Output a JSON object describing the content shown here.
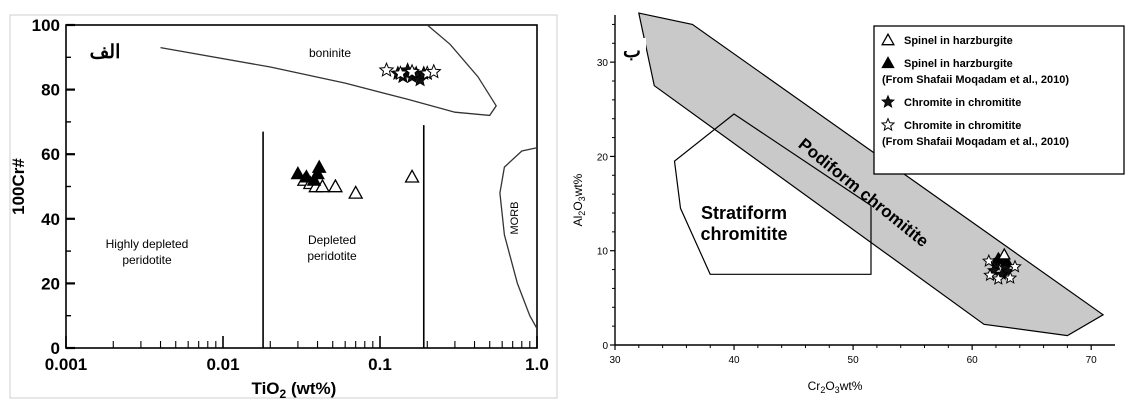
{
  "chart_data": [
    {
      "type": "scatter",
      "panel_label": "الف",
      "xlabel_main": "TiO",
      "xlabel_sub": "2",
      "xlabel_tail": " (wt%)",
      "ylabel": "100Cr#",
      "xscale": "log",
      "xlim": [
        0.001,
        1.0
      ],
      "ylim": [
        0,
        100
      ],
      "xticks": [
        {
          "v": 0.001,
          "label": "0.001"
        },
        {
          "v": 0.01,
          "label": "0.01"
        },
        {
          "v": 0.1,
          "label": "0.1"
        },
        {
          "v": 1.0,
          "label": "1.0"
        }
      ],
      "yticks": [
        {
          "v": 0,
          "label": "0"
        },
        {
          "v": 20,
          "label": "20"
        },
        {
          "v": 40,
          "label": "40"
        },
        {
          "v": 60,
          "label": "60"
        },
        {
          "v": 80,
          "label": "80"
        },
        {
          "v": 100,
          "label": "100"
        }
      ],
      "region_labels": {
        "boninite": "boninite",
        "highly_depleted": [
          "Highly depleted",
          "peridotite"
        ],
        "depleted": [
          "Depleted",
          "peridotite"
        ],
        "morb": "MORB"
      },
      "boundaries": {
        "boninite_curve": [
          [
            0.004,
            93
          ],
          [
            0.02,
            87
          ],
          [
            0.06,
            82
          ],
          [
            0.15,
            77
          ],
          [
            0.3,
            73
          ],
          [
            0.5,
            72
          ],
          [
            0.55,
            75
          ],
          [
            0.42,
            84
          ],
          [
            0.28,
            94
          ],
          [
            0.2,
            100
          ]
        ],
        "vline_low": {
          "x": 0.018,
          "y0": 0,
          "y1": 67
        },
        "vline_high": {
          "x": 0.19,
          "y0": 0,
          "y1": 69
        },
        "morb_curve": [
          [
            1.0,
            62
          ],
          [
            0.8,
            61
          ],
          [
            0.62,
            56
          ],
          [
            0.58,
            48
          ],
          [
            0.62,
            35
          ],
          [
            0.75,
            20
          ],
          [
            0.9,
            10
          ],
          [
            1.0,
            6
          ]
        ]
      },
      "series": [
        {
          "marker": "open-triangle",
          "points": [
            [
              0.033,
              52
            ],
            [
              0.036,
              51
            ],
            [
              0.039,
              50
            ],
            [
              0.043,
              50
            ],
            [
              0.052,
              50
            ],
            [
              0.07,
              48
            ],
            [
              0.16,
              53
            ]
          ]
        },
        {
          "marker": "filled-triangle",
          "points": [
            [
              0.03,
              54
            ],
            [
              0.034,
              53
            ],
            [
              0.04,
              54
            ],
            [
              0.041,
              56
            ],
            [
              0.038,
              52
            ]
          ]
        },
        {
          "marker": "filled-star",
          "points": [
            [
              0.13,
              85
            ],
            [
              0.14,
              84
            ],
            [
              0.15,
              86
            ],
            [
              0.16,
              84
            ],
            [
              0.17,
              85
            ],
            [
              0.18,
              83
            ],
            [
              0.19,
              85
            ]
          ]
        },
        {
          "marker": "open-star",
          "points": [
            [
              0.11,
              86
            ],
            [
              0.135,
              85
            ],
            [
              0.2,
              85
            ],
            [
              0.22,
              85.5
            ],
            [
              0.16,
              85.5
            ]
          ]
        }
      ]
    },
    {
      "type": "scatter",
      "panel_label": "ب",
      "xlabel": "Cr2O3wt%",
      "ylabel": "Al2O3wt%",
      "xlim": [
        30,
        72
      ],
      "ylim": [
        0,
        35
      ],
      "xticks": [
        {
          "v": 30,
          "label": "30"
        },
        {
          "v": 40,
          "label": "40"
        },
        {
          "v": 50,
          "label": "50"
        },
        {
          "v": 60,
          "label": "60"
        },
        {
          "v": 70,
          "label": "70"
        }
      ],
      "yticks": [
        {
          "v": 0,
          "label": "0"
        },
        {
          "v": 10,
          "label": "10"
        },
        {
          "v": 20,
          "label": "20"
        },
        {
          "v": 30,
          "label": "30"
        }
      ],
      "fields": {
        "podiform_label": "Podiform chromitite",
        "stratiform_label": [
          "Stratiform",
          "chromitite"
        ],
        "podiform_polygon": [
          [
            32,
            35.2
          ],
          [
            36.5,
            34
          ],
          [
            71,
            3.2
          ],
          [
            68,
            1
          ],
          [
            61,
            2.2
          ],
          [
            33.3,
            27.5
          ]
        ],
        "stratiform_polygon": [
          [
            40,
            24.5
          ],
          [
            35,
            19.5
          ],
          [
            35.5,
            14.5
          ],
          [
            38,
            7.5
          ],
          [
            51.5,
            7.5
          ],
          [
            51.5,
            14.8
          ]
        ]
      },
      "legend": {
        "position": "top-right",
        "entries": [
          {
            "marker": "open-triangle",
            "lines": [
              "Spinel in harzburgite"
            ]
          },
          {
            "marker": "filled-triangle",
            "lines": [
              "Spinel in harzburgite",
              "(From Shafaii Moqadam et al., 2010)"
            ]
          },
          {
            "marker": "filled-star",
            "lines": [
              "Chromite in chromitite"
            ]
          },
          {
            "marker": "open-star",
            "lines": [
              "Chromite in chromitite",
              "(From Shafaii Moqadam et al., 2010)"
            ]
          }
        ]
      },
      "series": [
        {
          "marker": "filled-star",
          "points": [
            [
              62,
              8.5
            ],
            [
              62.3,
              9
            ],
            [
              62.8,
              8.2
            ],
            [
              63,
              7.8
            ],
            [
              62.5,
              7.5
            ],
            [
              61.8,
              7.9
            ]
          ]
        },
        {
          "marker": "filled-triangle",
          "points": [
            [
              62.2,
              9.2
            ],
            [
              62.9,
              8.9
            ]
          ]
        },
        {
          "marker": "open-star",
          "points": [
            [
              61.5,
              7.4
            ],
            [
              62.2,
              7.0
            ],
            [
              63.2,
              7.1
            ],
            [
              63.6,
              8.3
            ],
            [
              61.4,
              8.9
            ]
          ]
        },
        {
          "marker": "open-triangle",
          "points": [
            [
              62.7,
              9.6
            ]
          ]
        }
      ]
    }
  ]
}
